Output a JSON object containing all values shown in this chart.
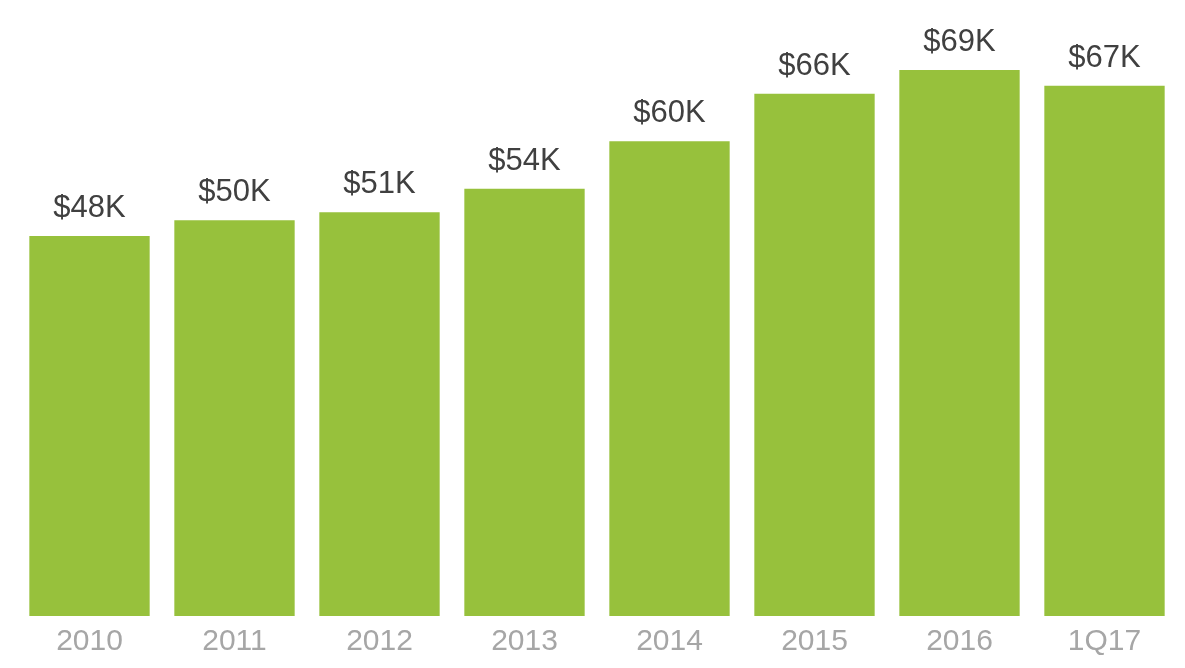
{
  "chart_data": {
    "type": "bar",
    "categories": [
      "2010",
      "2011",
      "2012",
      "2013",
      "2014",
      "2015",
      "2016",
      "1Q17"
    ],
    "values": [
      48,
      50,
      51,
      54,
      60,
      66,
      69,
      67
    ],
    "value_labels": [
      "$48K",
      "$50K",
      "$51K",
      "$54K",
      "$60K",
      "$66K",
      "$69K",
      "$67K"
    ],
    "color": "#97c13c",
    "grid": false,
    "legend": false,
    "tick_labels": "x"
  }
}
